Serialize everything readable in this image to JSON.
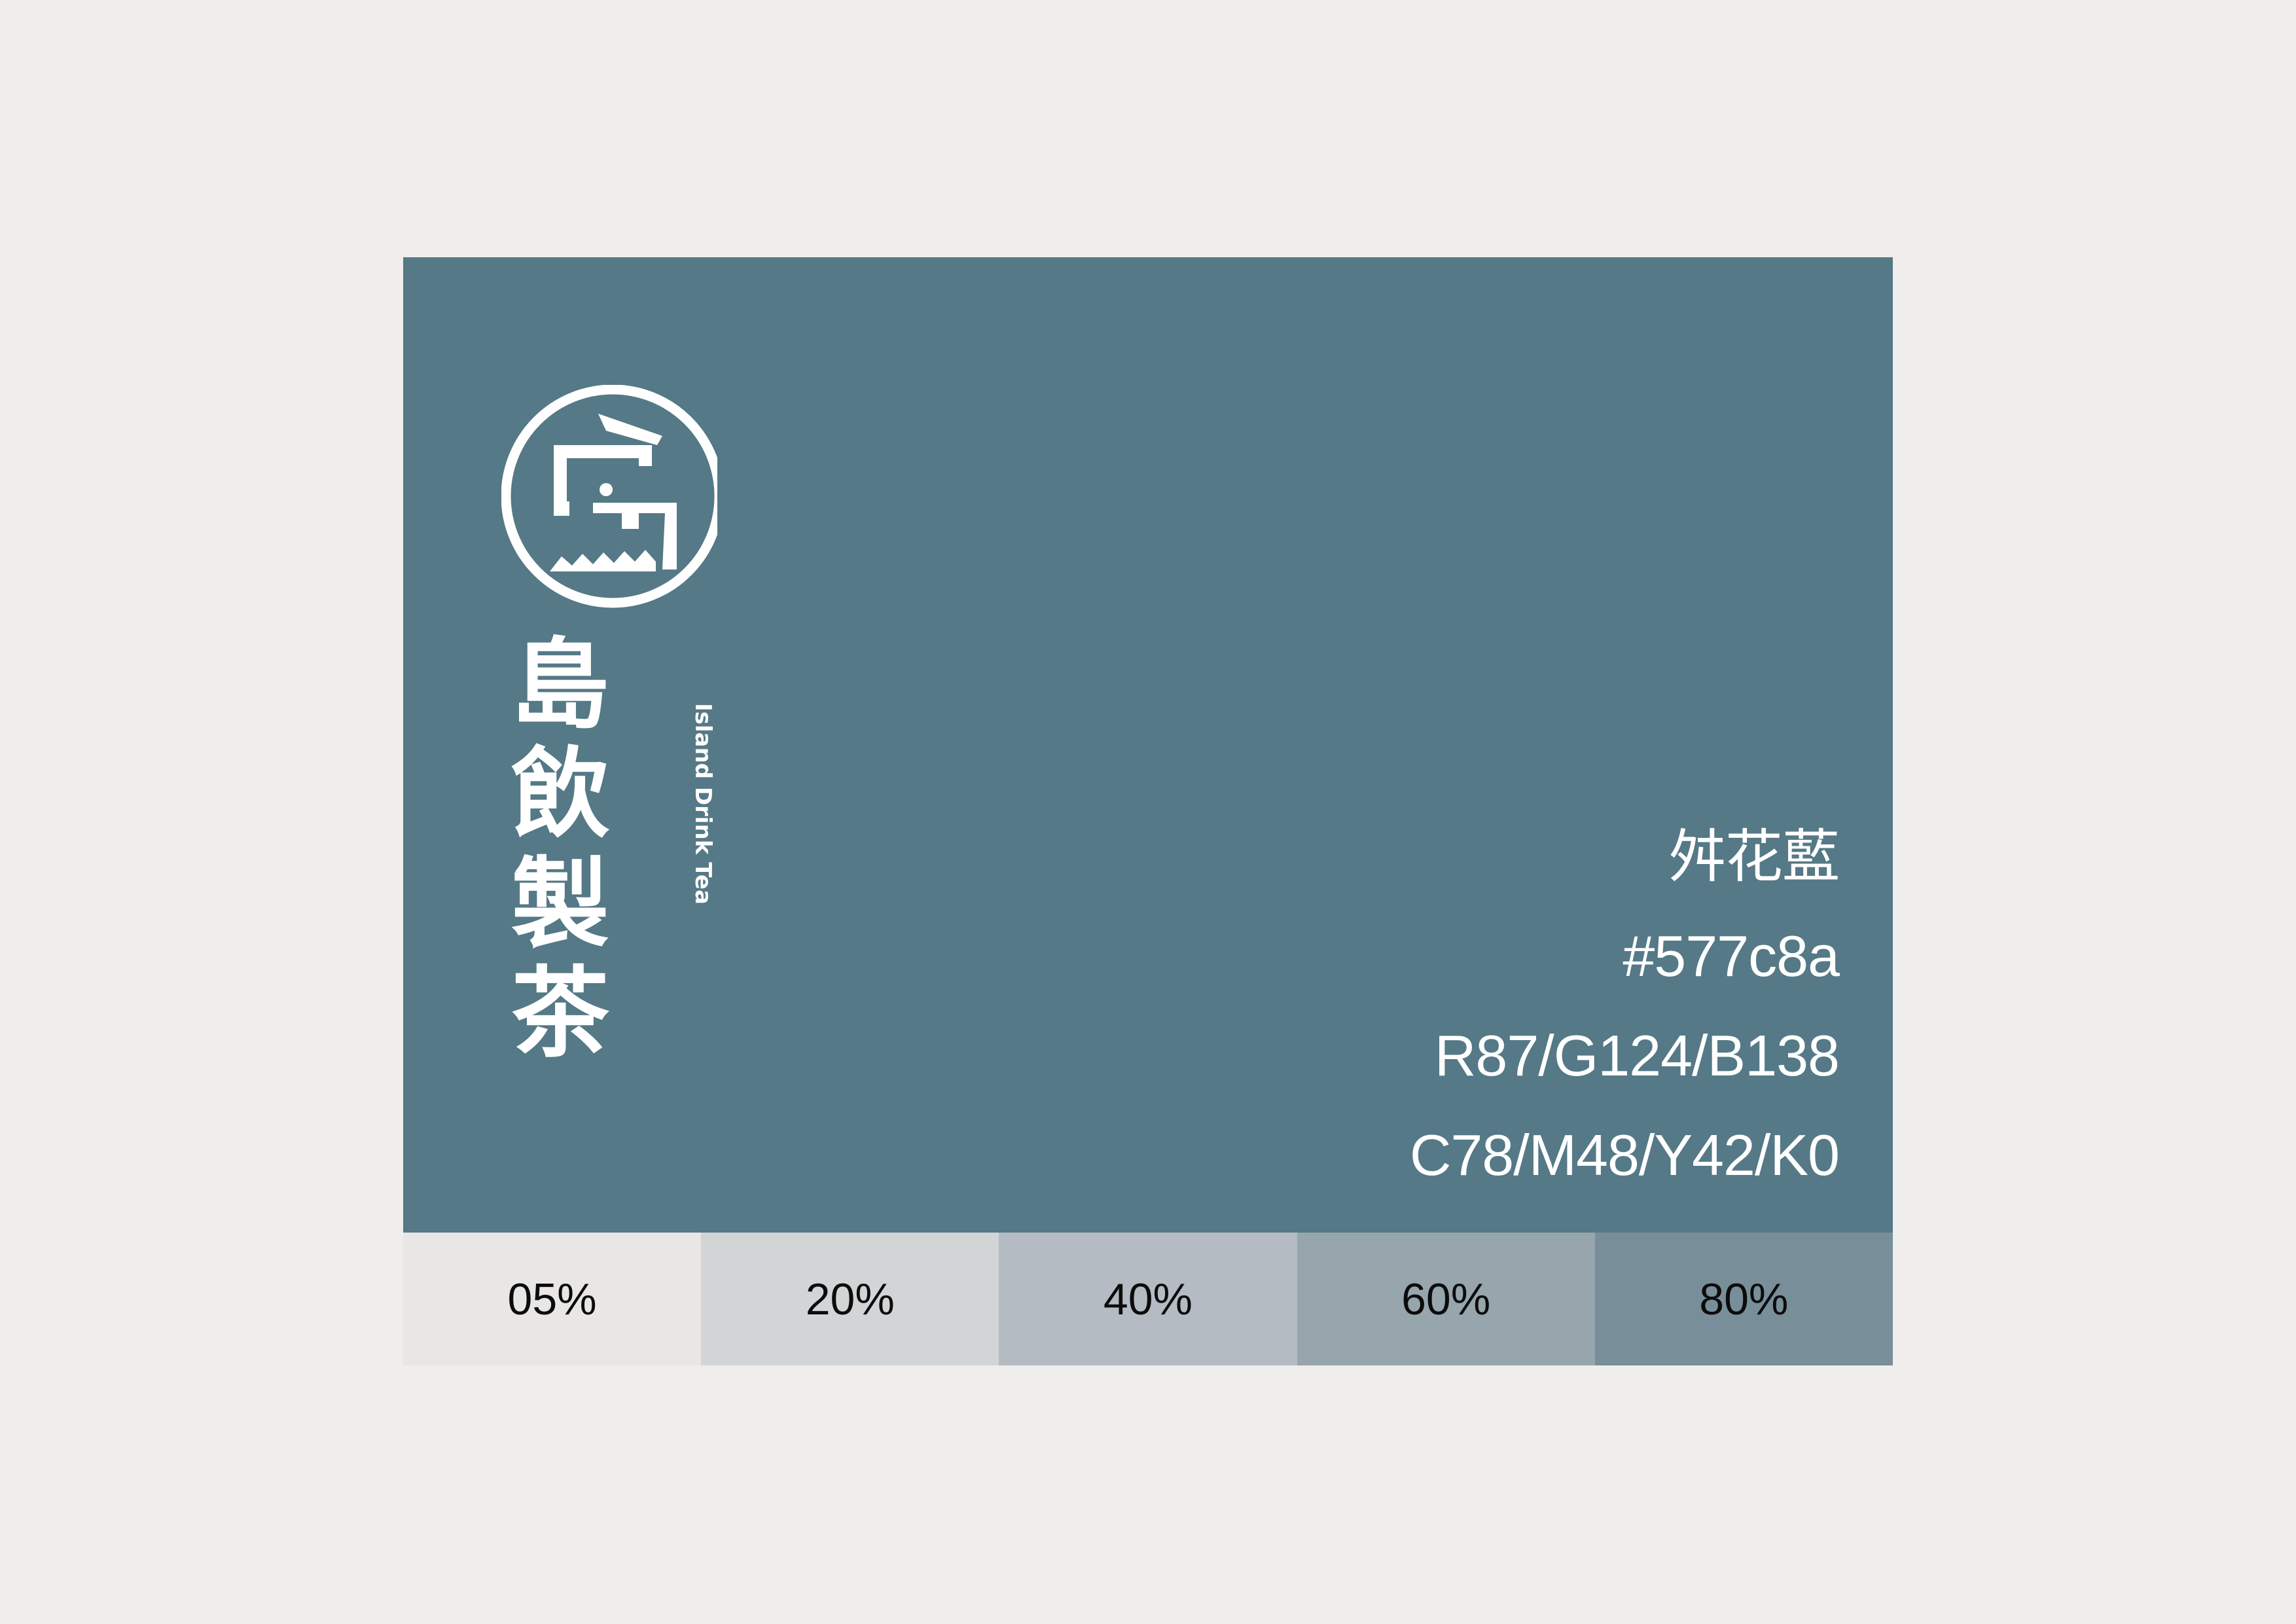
{
  "brand": {
    "name_zh": [
      "島",
      "飲",
      "製",
      "茶"
    ],
    "name_en": "Island Drink Tea"
  },
  "color": {
    "name": "舛花藍",
    "hex": "#577c8a",
    "rgb": "R87/G124/B138",
    "cmyk": "C78/M48/Y42/K0",
    "display": "#557986",
    "text": "#ffffff",
    "background": "#efeeec"
  },
  "tints": [
    {
      "label": "05%",
      "color": "#e8e7e5"
    },
    {
      "label": "20%",
      "color": "#d2d4d6"
    },
    {
      "label": "40%",
      "color": "#b4bbc3"
    },
    {
      "label": "60%",
      "color": "#97a5ac"
    },
    {
      "label": "80%",
      "color": "#788e98"
    }
  ]
}
